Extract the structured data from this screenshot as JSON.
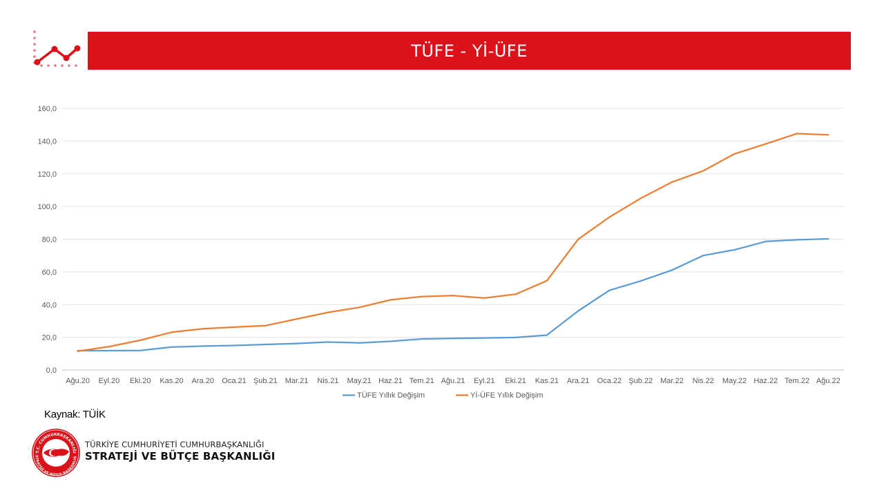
{
  "header": {
    "title": "TÜFE - Yİ-ÜFE",
    "icon": "trend-line-icon",
    "accent_color": "#db1219"
  },
  "chart_data": {
    "type": "line",
    "title": "",
    "xlabel": "",
    "ylabel": "",
    "categories": [
      "Ağu.20",
      "Eyl.20",
      "Eki.20",
      "Kas.20",
      "Ara.20",
      "Oca.21",
      "Şub.21",
      "Mar.21",
      "Nis.21",
      "May.21",
      "Haz.21",
      "Tem.21",
      "Ağu.21",
      "Eyl.21",
      "Eki.21",
      "Kas.21",
      "Ara.21",
      "Oca.22",
      "Şub.22",
      "Mar.22",
      "Nis.22",
      "May.22",
      "Haz.22",
      "Tem.22",
      "Ağu.22"
    ],
    "ylim": [
      0,
      160
    ],
    "y_ticks": [
      "0,0",
      "20,0",
      "40,0",
      "60,0",
      "80,0",
      "100,0",
      "120,0",
      "140,0",
      "160,0"
    ],
    "grid": true,
    "legend_position": "bottom",
    "series": [
      {
        "name": "TÜFE Yıllık Değişim",
        "color": "#5b9bd5",
        "values": [
          11.8,
          11.8,
          11.9,
          14.0,
          14.6,
          15.0,
          15.6,
          16.2,
          17.1,
          16.6,
          17.5,
          19.0,
          19.3,
          19.6,
          19.9,
          21.3,
          36.1,
          48.7,
          54.4,
          61.1,
          70.0,
          73.5,
          78.6,
          79.6,
          80.2
        ]
      },
      {
        "name": "Yİ-ÜFE Yıllık Değişim",
        "color": "#ed7d31",
        "values": [
          11.5,
          14.3,
          18.2,
          23.1,
          25.2,
          26.2,
          27.1,
          31.2,
          35.2,
          38.3,
          42.9,
          44.9,
          45.5,
          44.0,
          46.3,
          54.6,
          79.9,
          93.5,
          105.0,
          114.9,
          121.8,
          132.2,
          138.3,
          144.6,
          143.8
        ]
      }
    ]
  },
  "footer": {
    "source": "Kaynak: TÜİK",
    "org_line1": "TÜRKİYE CUMHURİYETİ CUMHURBAŞKANLIĞI",
    "org_line2": "STRATEJİ VE BÜTÇE BAŞKANLIĞI",
    "seal_icon": "presidency-seal-icon",
    "seal_text_top": "T.C. CUMHURBAŞKANLIĞI",
    "seal_text_bottom": "STRATEJİ VE BÜTÇE BAŞKANLIĞI"
  }
}
